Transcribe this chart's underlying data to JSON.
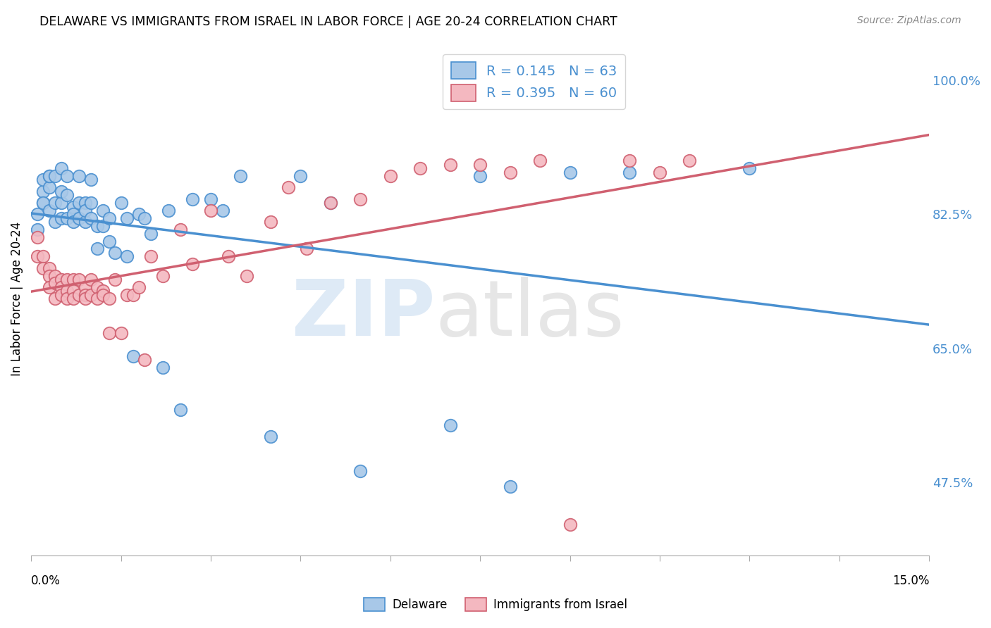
{
  "title": "DELAWARE VS IMMIGRANTS FROM ISRAEL IN LABOR FORCE | AGE 20-24 CORRELATION CHART",
  "source": "Source: ZipAtlas.com",
  "ylabel": "In Labor Force | Age 20-24",
  "ytick_labels": [
    "47.5%",
    "65.0%",
    "82.5%",
    "100.0%"
  ],
  "ytick_values": [
    0.475,
    0.65,
    0.825,
    1.0
  ],
  "xlim": [
    0.0,
    0.15
  ],
  "ylim": [
    0.38,
    1.05
  ],
  "blue_color": "#a8c8e8",
  "blue_edge_color": "#4a90d0",
  "pink_color": "#f4b8c0",
  "pink_edge_color": "#d06070",
  "blue_line_color": "#4a90d0",
  "pink_line_color": "#d06070",
  "blue_R": 0.145,
  "blue_N": 63,
  "pink_R": 0.395,
  "pink_N": 60,
  "legend_label_blue": "Delaware",
  "legend_label_pink": "Immigrants from Israel",
  "blue_scatter_x": [
    0.001,
    0.001,
    0.002,
    0.002,
    0.002,
    0.002,
    0.003,
    0.003,
    0.003,
    0.003,
    0.004,
    0.004,
    0.004,
    0.005,
    0.005,
    0.005,
    0.005,
    0.006,
    0.006,
    0.006,
    0.007,
    0.007,
    0.007,
    0.008,
    0.008,
    0.008,
    0.009,
    0.009,
    0.009,
    0.01,
    0.01,
    0.01,
    0.011,
    0.011,
    0.012,
    0.012,
    0.013,
    0.013,
    0.014,
    0.015,
    0.016,
    0.016,
    0.017,
    0.018,
    0.019,
    0.02,
    0.022,
    0.023,
    0.025,
    0.027,
    0.03,
    0.032,
    0.035,
    0.04,
    0.045,
    0.05,
    0.055,
    0.07,
    0.075,
    0.08,
    0.09,
    0.1,
    0.12
  ],
  "blue_scatter_y": [
    0.805,
    0.825,
    0.84,
    0.855,
    0.87,
    0.84,
    0.86,
    0.875,
    0.875,
    0.83,
    0.84,
    0.815,
    0.875,
    0.82,
    0.84,
    0.855,
    0.885,
    0.82,
    0.85,
    0.875,
    0.835,
    0.825,
    0.815,
    0.82,
    0.84,
    0.875,
    0.815,
    0.84,
    0.83,
    0.82,
    0.84,
    0.87,
    0.78,
    0.81,
    0.81,
    0.83,
    0.79,
    0.82,
    0.775,
    0.84,
    0.82,
    0.77,
    0.64,
    0.825,
    0.82,
    0.8,
    0.625,
    0.83,
    0.57,
    0.845,
    0.845,
    0.83,
    0.875,
    0.535,
    0.875,
    0.84,
    0.49,
    0.55,
    0.875,
    0.47,
    0.88,
    0.88,
    0.885
  ],
  "pink_scatter_x": [
    0.001,
    0.001,
    0.002,
    0.002,
    0.003,
    0.003,
    0.003,
    0.004,
    0.004,
    0.004,
    0.005,
    0.005,
    0.005,
    0.006,
    0.006,
    0.006,
    0.007,
    0.007,
    0.007,
    0.008,
    0.008,
    0.009,
    0.009,
    0.009,
    0.01,
    0.01,
    0.011,
    0.011,
    0.012,
    0.012,
    0.013,
    0.013,
    0.014,
    0.015,
    0.016,
    0.017,
    0.018,
    0.019,
    0.02,
    0.022,
    0.025,
    0.027,
    0.03,
    0.033,
    0.036,
    0.04,
    0.043,
    0.046,
    0.05,
    0.055,
    0.06,
    0.065,
    0.07,
    0.075,
    0.08,
    0.085,
    0.09,
    0.1,
    0.105,
    0.11
  ],
  "pink_scatter_y": [
    0.795,
    0.77,
    0.77,
    0.755,
    0.755,
    0.745,
    0.73,
    0.745,
    0.735,
    0.715,
    0.74,
    0.73,
    0.72,
    0.74,
    0.725,
    0.715,
    0.74,
    0.725,
    0.715,
    0.74,
    0.72,
    0.73,
    0.72,
    0.715,
    0.74,
    0.72,
    0.73,
    0.715,
    0.725,
    0.72,
    0.715,
    0.67,
    0.74,
    0.67,
    0.72,
    0.72,
    0.73,
    0.635,
    0.77,
    0.745,
    0.805,
    0.76,
    0.83,
    0.77,
    0.745,
    0.815,
    0.86,
    0.78,
    0.84,
    0.845,
    0.875,
    0.885,
    0.89,
    0.89,
    0.88,
    0.895,
    0.42,
    0.895,
    0.88,
    0.895
  ]
}
